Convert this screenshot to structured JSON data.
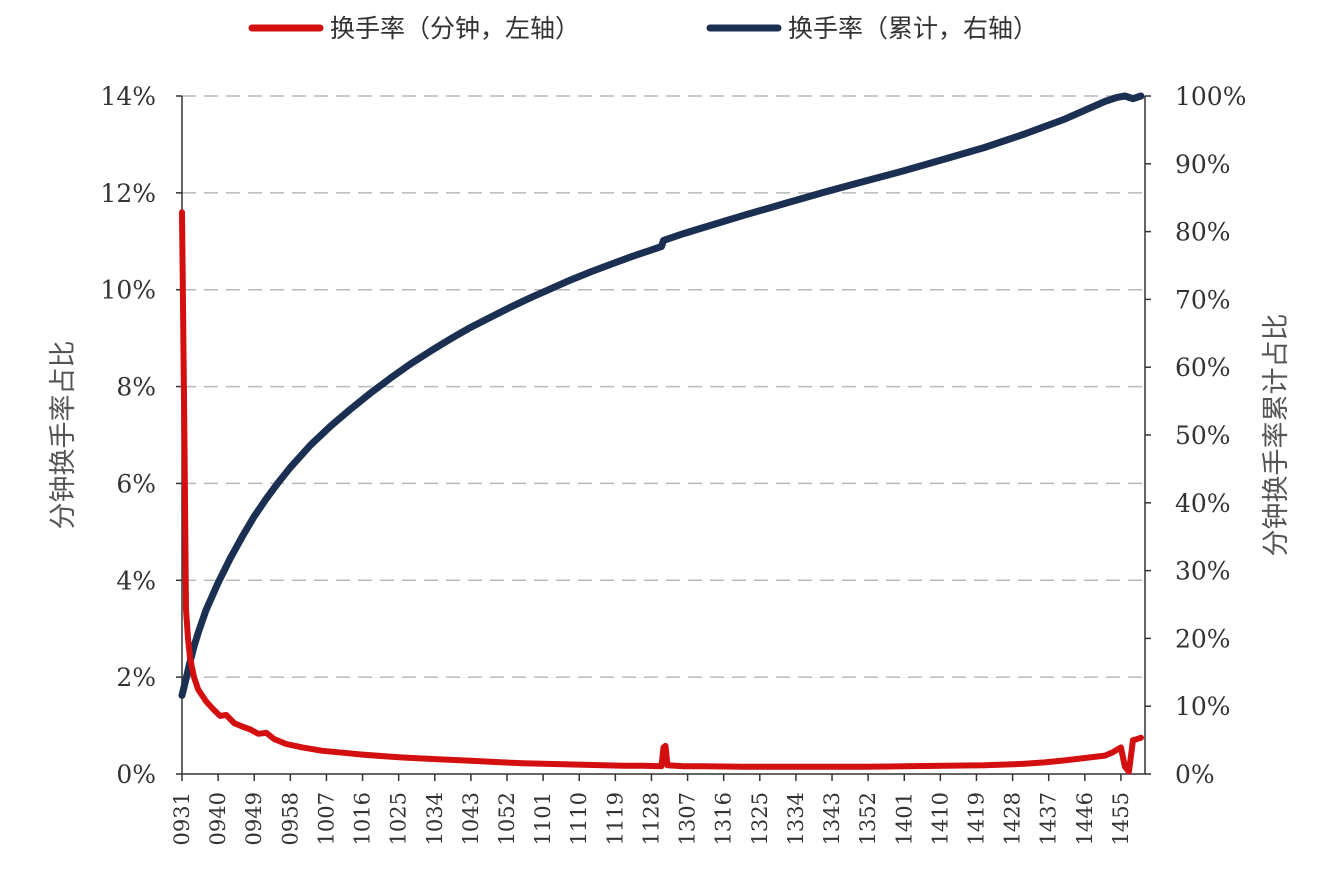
{
  "chart_data": {
    "type": "line",
    "title": "",
    "legend_position": "top",
    "grid": "horizontal-dashed",
    "colors": {
      "minute": "#d40f0f",
      "cumulative": "#1b2f52",
      "grid": "#b9b9b9",
      "axis": "#333333"
    },
    "y_left": {
      "label": "分钟换手率占比",
      "range": [
        0,
        14
      ],
      "ticks": [
        0,
        2,
        4,
        6,
        8,
        10,
        12,
        14
      ],
      "tick_labels": [
        "0%",
        "2%",
        "4%",
        "6%",
        "8%",
        "10%",
        "12%",
        "14%"
      ]
    },
    "y_right": {
      "label": "分钟换手率累计占比",
      "range": [
        0,
        100
      ],
      "ticks": [
        0,
        10,
        20,
        30,
        40,
        50,
        60,
        70,
        80,
        90,
        100
      ],
      "tick_labels": [
        "0%",
        "10%",
        "20%",
        "30%",
        "40%",
        "50%",
        "60%",
        "70%",
        "80%",
        "90%",
        "100%"
      ]
    },
    "x": {
      "label": "",
      "range": [
        0,
        240
      ],
      "tick_positions": [
        0,
        9,
        18,
        27,
        36,
        45,
        54,
        63,
        72,
        81,
        90,
        99,
        108,
        117,
        126,
        135,
        144,
        153,
        162,
        171,
        180,
        189,
        198,
        207,
        216,
        225,
        234
      ],
      "tick_labels": [
        "0931",
        "0940",
        "0949",
        "0958",
        "1007",
        "1016",
        "1025",
        "1034",
        "1043",
        "1052",
        "1101",
        "1110",
        "1119",
        "1128",
        "1307",
        "1316",
        "1325",
        "1334",
        "1343",
        "1352",
        "1401",
        "1410",
        "1419",
        "1428",
        "1437",
        "1446",
        "1455"
      ]
    },
    "series": [
      {
        "name": "换手率（分钟，左轴）",
        "axis": "left",
        "color": "#d40f0f",
        "points": [
          [
            0,
            11.6
          ],
          [
            0.6,
            7.0
          ],
          [
            1,
            3.4
          ],
          [
            1.5,
            2.8
          ],
          [
            2,
            2.4
          ],
          [
            3,
            2.0
          ],
          [
            4,
            1.75
          ],
          [
            6,
            1.5
          ],
          [
            8,
            1.32
          ],
          [
            9.5,
            1.2
          ],
          [
            11,
            1.22
          ],
          [
            13,
            1.05
          ],
          [
            15,
            0.98
          ],
          [
            17,
            0.92
          ],
          [
            19,
            0.83
          ],
          [
            21,
            0.85
          ],
          [
            23,
            0.72
          ],
          [
            26,
            0.62
          ],
          [
            30,
            0.55
          ],
          [
            35,
            0.48
          ],
          [
            40,
            0.44
          ],
          [
            45,
            0.4
          ],
          [
            50,
            0.37
          ],
          [
            55,
            0.34
          ],
          [
            60,
            0.32
          ],
          [
            65,
            0.3
          ],
          [
            70,
            0.28
          ],
          [
            75,
            0.26
          ],
          [
            80,
            0.24
          ],
          [
            85,
            0.22
          ],
          [
            90,
            0.21
          ],
          [
            95,
            0.2
          ],
          [
            100,
            0.19
          ],
          [
            105,
            0.18
          ],
          [
            110,
            0.17
          ],
          [
            115,
            0.17
          ],
          [
            119.5,
            0.16
          ],
          [
            120,
            0.55
          ],
          [
            120.5,
            0.58
          ],
          [
            121,
            0.18
          ],
          [
            125,
            0.16
          ],
          [
            130,
            0.16
          ],
          [
            140,
            0.15
          ],
          [
            150,
            0.15
          ],
          [
            160,
            0.15
          ],
          [
            170,
            0.15
          ],
          [
            180,
            0.16
          ],
          [
            190,
            0.17
          ],
          [
            200,
            0.18
          ],
          [
            210,
            0.21
          ],
          [
            215,
            0.24
          ],
          [
            220,
            0.28
          ],
          [
            225,
            0.33
          ],
          [
            230,
            0.38
          ],
          [
            232,
            0.45
          ],
          [
            234,
            0.55
          ],
          [
            235,
            0.15
          ],
          [
            236,
            0.05
          ],
          [
            237,
            0.7
          ],
          [
            238,
            0.72
          ],
          [
            239,
            0.75
          ]
        ]
      },
      {
        "name": "换手率（累计，右轴）",
        "axis": "right",
        "color": "#1b2f52",
        "points": [
          [
            0,
            11.6
          ],
          [
            1,
            14
          ],
          [
            2,
            16.5
          ],
          [
            3,
            18.8
          ],
          [
            4,
            20.8
          ],
          [
            6,
            24.2
          ],
          [
            9,
            28.2
          ],
          [
            12,
            31.8
          ],
          [
            15,
            35
          ],
          [
            18,
            38
          ],
          [
            21,
            40.6
          ],
          [
            24,
            43
          ],
          [
            27,
            45.2
          ],
          [
            32,
            48.5
          ],
          [
            37,
            51.3
          ],
          [
            42,
            53.8
          ],
          [
            47,
            56.2
          ],
          [
            52,
            58.4
          ],
          [
            57,
            60.5
          ],
          [
            62,
            62.4
          ],
          [
            67,
            64.2
          ],
          [
            72,
            65.9
          ],
          [
            77,
            67.4
          ],
          [
            82,
            68.9
          ],
          [
            87,
            70.3
          ],
          [
            92,
            71.6
          ],
          [
            97,
            72.9
          ],
          [
            102,
            74.1
          ],
          [
            107,
            75.2
          ],
          [
            112,
            76.3
          ],
          [
            117,
            77.3
          ],
          [
            119.5,
            77.8
          ],
          [
            120,
            78.7
          ],
          [
            125,
            79.7
          ],
          [
            130,
            80.6
          ],
          [
            140,
            82.4
          ],
          [
            150,
            84.1
          ],
          [
            160,
            85.8
          ],
          [
            170,
            87.4
          ],
          [
            180,
            89
          ],
          [
            190,
            90.7
          ],
          [
            200,
            92.4
          ],
          [
            210,
            94.4
          ],
          [
            220,
            96.6
          ],
          [
            230,
            99.2
          ],
          [
            233,
            99.8
          ],
          [
            235,
            100
          ],
          [
            237,
            99.6
          ],
          [
            239,
            100
          ]
        ]
      }
    ]
  }
}
